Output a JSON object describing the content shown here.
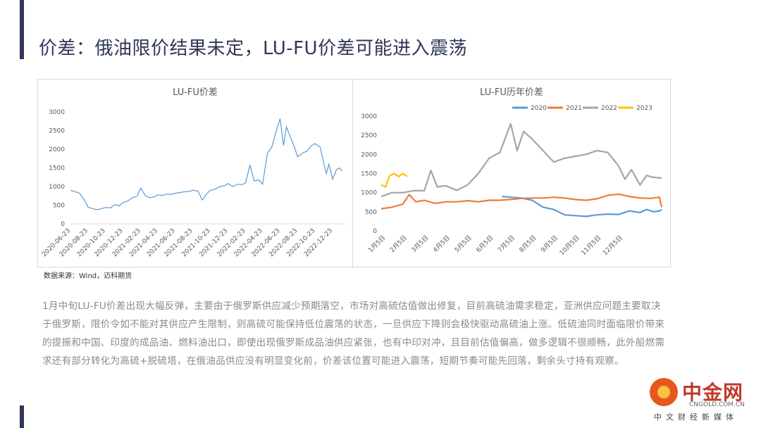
{
  "slide": {
    "title": "价差：俄油限价结果未定，LU-FU价差可能进入震荡",
    "source": "数据来源：Wind，迈科期货",
    "body": "1月中旬LU-FU价差出现大幅反弹，主要由于俄罗斯供应减少预期落空，市场对高硫估值做出修复，目前高硫油需求稳定，亚洲供应问题主要取决于俄罗斯，限价令如不能对其供应产生限制，则高硫可能保持低位震荡的状态，一旦供应下降则会极快驱动高硫油上涨。低硫油同时面临限价带来的提振和中国、印度的成品油、燃料油出口，即使出现俄罗斯成品油供应紧张，也有中印对冲，且目前估值偏高，做多逻辑不很顺畅，此外船燃需求还有部分转化为高硫+脱硫塔，在俄油品供应没有明显变化前，价差该位置可能进入震荡，短期节奏可能先回落，剩余头寸持有观察。",
    "accent_color": "#2f3658"
  },
  "watermark": {
    "name": "中金网",
    "url": "CNGOLD.COM.CN",
    "media": "中文财经新媒体"
  },
  "chart_data": [
    {
      "type": "line",
      "title": "LU-FU价差",
      "x_ticks": [
        "2020-06-23",
        "2020-08-23",
        "2020-10-23",
        "2020-12-23",
        "2021-02-23",
        "2021-04-23",
        "2021-06-23",
        "2021-08-23",
        "2021-10-23",
        "2021-12-23",
        "2022-02-23",
        "2022-04-23",
        "2022-06-23",
        "2022-08-23",
        "2022-10-23",
        "2022-12-23"
      ],
      "y_ticks": [
        0,
        500,
        1000,
        1500,
        2000,
        2500,
        3000
      ],
      "ylim": [
        0,
        3000
      ],
      "color": "#5b9bd5",
      "series": [
        {
          "x": "2020-06-23",
          "y": 900
        },
        {
          "x": "2020-07-10",
          "y": 860
        },
        {
          "x": "2020-07-25",
          "y": 820
        },
        {
          "x": "2020-08-10",
          "y": 640
        },
        {
          "x": "2020-08-23",
          "y": 450
        },
        {
          "x": "2020-09-10",
          "y": 400
        },
        {
          "x": "2020-09-25",
          "y": 380
        },
        {
          "x": "2020-10-10",
          "y": 410
        },
        {
          "x": "2020-10-23",
          "y": 440
        },
        {
          "x": "2020-11-10",
          "y": 430
        },
        {
          "x": "2020-11-25",
          "y": 520
        },
        {
          "x": "2020-12-10",
          "y": 480
        },
        {
          "x": "2020-12-23",
          "y": 570
        },
        {
          "x": "2021-01-10",
          "y": 620
        },
        {
          "x": "2021-01-25",
          "y": 700
        },
        {
          "x": "2021-02-10",
          "y": 740
        },
        {
          "x": "2021-02-23",
          "y": 960
        },
        {
          "x": "2021-03-10",
          "y": 760
        },
        {
          "x": "2021-03-25",
          "y": 700
        },
        {
          "x": "2021-04-10",
          "y": 720
        },
        {
          "x": "2021-04-23",
          "y": 780
        },
        {
          "x": "2021-05-10",
          "y": 760
        },
        {
          "x": "2021-05-25",
          "y": 800
        },
        {
          "x": "2021-06-10",
          "y": 790
        },
        {
          "x": "2021-06-23",
          "y": 820
        },
        {
          "x": "2021-07-10",
          "y": 840
        },
        {
          "x": "2021-07-25",
          "y": 860
        },
        {
          "x": "2021-08-10",
          "y": 870
        },
        {
          "x": "2021-08-23",
          "y": 900
        },
        {
          "x": "2021-09-10",
          "y": 880
        },
        {
          "x": "2021-09-25",
          "y": 640
        },
        {
          "x": "2021-10-10",
          "y": 800
        },
        {
          "x": "2021-10-23",
          "y": 900
        },
        {
          "x": "2021-11-10",
          "y": 930
        },
        {
          "x": "2021-11-25",
          "y": 1000
        },
        {
          "x": "2021-12-10",
          "y": 1020
        },
        {
          "x": "2021-12-23",
          "y": 1080
        },
        {
          "x": "2022-01-10",
          "y": 1000
        },
        {
          "x": "2022-01-25",
          "y": 1060
        },
        {
          "x": "2022-02-10",
          "y": 1050
        },
        {
          "x": "2022-02-23",
          "y": 1100
        },
        {
          "x": "2022-03-10",
          "y": 1580
        },
        {
          "x": "2022-03-25",
          "y": 1150
        },
        {
          "x": "2022-04-10",
          "y": 1180
        },
        {
          "x": "2022-04-23",
          "y": 1060
        },
        {
          "x": "2022-05-10",
          "y": 1900
        },
        {
          "x": "2022-05-25",
          "y": 2050
        },
        {
          "x": "2022-06-10",
          "y": 2500
        },
        {
          "x": "2022-06-23",
          "y": 2820
        },
        {
          "x": "2022-07-05",
          "y": 2100
        },
        {
          "x": "2022-07-15",
          "y": 2600
        },
        {
          "x": "2022-07-25",
          "y": 2400
        },
        {
          "x": "2022-08-10",
          "y": 2100
        },
        {
          "x": "2022-08-23",
          "y": 1800
        },
        {
          "x": "2022-09-10",
          "y": 1900
        },
        {
          "x": "2022-09-25",
          "y": 1950
        },
        {
          "x": "2022-10-10",
          "y": 2100
        },
        {
          "x": "2022-10-23",
          "y": 2150
        },
        {
          "x": "2022-11-10",
          "y": 2050
        },
        {
          "x": "2022-11-20",
          "y": 1700
        },
        {
          "x": "2022-12-01",
          "y": 1350
        },
        {
          "x": "2022-12-10",
          "y": 1600
        },
        {
          "x": "2022-12-23",
          "y": 1200
        },
        {
          "x": "2023-01-05",
          "y": 1450
        },
        {
          "x": "2023-01-15",
          "y": 1500
        },
        {
          "x": "2023-01-25",
          "y": 1420
        }
      ]
    },
    {
      "type": "line",
      "title": "LU-FU历年价差",
      "x_ticks": [
        "1月5日",
        "2月5日",
        "3月5日",
        "4月5日",
        "5月5日",
        "6月5日",
        "7月5日",
        "8月5日",
        "9月5日",
        "10月5日",
        "11月5日",
        "12月5日"
      ],
      "y_ticks": [
        0,
        500,
        1000,
        1500,
        2000,
        2500,
        3000
      ],
      "ylim": [
        0,
        3000
      ],
      "legend_position": "top",
      "series": [
        {
          "name": "2020",
          "color": "#5b9bd5",
          "points": [
            [
              5.6,
              900
            ],
            [
              6.0,
              880
            ],
            [
              6.5,
              860
            ],
            [
              7.0,
              800
            ],
            [
              7.5,
              620
            ],
            [
              8.0,
              560
            ],
            [
              8.5,
              420
            ],
            [
              9.0,
              400
            ],
            [
              9.5,
              380
            ],
            [
              10.0,
              420
            ],
            [
              10.5,
              440
            ],
            [
              11.0,
              430
            ],
            [
              11.5,
              520
            ],
            [
              12.0,
              480
            ],
            [
              12.3,
              560
            ],
            [
              12.6,
              500
            ],
            [
              12.9,
              520
            ],
            [
              13.0,
              560
            ]
          ]
        },
        {
          "name": "2021",
          "color": "#ed7d31",
          "points": [
            [
              0,
              580
            ],
            [
              0.5,
              620
            ],
            [
              1.0,
              700
            ],
            [
              1.3,
              950
            ],
            [
              1.6,
              760
            ],
            [
              2.0,
              800
            ],
            [
              2.5,
              720
            ],
            [
              3.0,
              760
            ],
            [
              3.5,
              760
            ],
            [
              4.0,
              790
            ],
            [
              4.5,
              760
            ],
            [
              5.0,
              800
            ],
            [
              5.5,
              800
            ],
            [
              6.0,
              820
            ],
            [
              6.5,
              850
            ],
            [
              7.0,
              860
            ],
            [
              7.5,
              860
            ],
            [
              8.0,
              880
            ],
            [
              8.5,
              860
            ],
            [
              9.0,
              820
            ],
            [
              9.5,
              800
            ],
            [
              10.0,
              840
            ],
            [
              10.5,
              930
            ],
            [
              11.0,
              960
            ],
            [
              11.5,
              900
            ],
            [
              12.0,
              860
            ],
            [
              12.5,
              850
            ],
            [
              12.9,
              880
            ],
            [
              13.0,
              620
            ]
          ]
        },
        {
          "name": "2022",
          "color": "#a5a5a5",
          "points": [
            [
              0,
              900
            ],
            [
              0.5,
              1000
            ],
            [
              1.0,
              1000
            ],
            [
              1.5,
              1050
            ],
            [
              2.0,
              1050
            ],
            [
              2.3,
              1580
            ],
            [
              2.6,
              1150
            ],
            [
              3.0,
              1180
            ],
            [
              3.5,
              1060
            ],
            [
              4.0,
              1200
            ],
            [
              4.5,
              1500
            ],
            [
              5.0,
              1900
            ],
            [
              5.5,
              2050
            ],
            [
              6.0,
              2800
            ],
            [
              6.3,
              2100
            ],
            [
              6.6,
              2600
            ],
            [
              7.0,
              2400
            ],
            [
              7.5,
              2100
            ],
            [
              8.0,
              1800
            ],
            [
              8.5,
              1900
            ],
            [
              9.0,
              1950
            ],
            [
              9.5,
              2000
            ],
            [
              10.0,
              2100
            ],
            [
              10.5,
              2050
            ],
            [
              11.0,
              1700
            ],
            [
              11.3,
              1350
            ],
            [
              11.6,
              1600
            ],
            [
              12.0,
              1200
            ],
            [
              12.3,
              1450
            ],
            [
              12.6,
              1400
            ],
            [
              13.0,
              1380
            ]
          ]
        },
        {
          "name": "2023",
          "color": "#ffc000",
          "points": [
            [
              0,
              1200
            ],
            [
              0.2,
              1150
            ],
            [
              0.4,
              1450
            ],
            [
              0.6,
              1500
            ],
            [
              0.8,
              1420
            ],
            [
              1.0,
              1500
            ],
            [
              1.2,
              1420
            ]
          ]
        }
      ]
    }
  ]
}
